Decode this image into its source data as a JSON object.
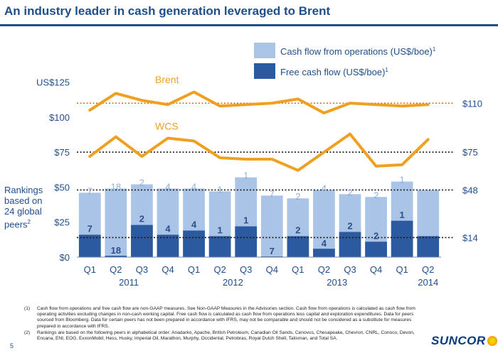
{
  "title": "An industry leader in cash generation leveraged to Brent",
  "page_number": "5",
  "logo_text": "SUNCOR",
  "rankings_note": {
    "line1": "Rankings",
    "line2": "based on",
    "line3": "24 global",
    "line4": "peers",
    "sup": "2"
  },
  "colors": {
    "cfo": "#a9c4e6",
    "fcf": "#2c5aa0",
    "line": "#f0a020",
    "axis_text": "#1f4e8c",
    "ref_brent": "#d2691e",
    "ref_dark": "#1a1a1a"
  },
  "chart_data": {
    "type": "bar",
    "categories": [
      "Q1",
      "Q2",
      "Q3",
      "Q4",
      "Q1",
      "Q2",
      "Q3",
      "Q4",
      "Q1",
      "Q2",
      "Q3",
      "Q4",
      "Q1",
      "Q2"
    ],
    "years": [
      {
        "label": "2011",
        "start": 0,
        "end": 3
      },
      {
        "label": "2012",
        "start": 4,
        "end": 7
      },
      {
        "label": "2013",
        "start": 8,
        "end": 11
      },
      {
        "label": "2014",
        "start": 13,
        "end": 13
      }
    ],
    "ylim": [
      0,
      135
    ],
    "yticks": [
      {
        "value": 0,
        "label": "$0"
      },
      {
        "value": 25,
        "label": "$25"
      },
      {
        "value": 50,
        "label": "$50"
      },
      {
        "value": 75,
        "label": "$75"
      },
      {
        "value": 100,
        "label": "$100"
      },
      {
        "value": 125,
        "label": "US$125"
      }
    ],
    "legend": {
      "placement": "top-right",
      "cfo_label": "Cash flow from operations (US$/boe)",
      "fcf_label": "Free cash flow (US$/boe)",
      "sup": "1"
    },
    "series": [
      {
        "name": "Cash flow from operations (US$/boe)",
        "kind": "bar-back",
        "values": [
          46,
          49,
          52,
          49,
          49,
          47,
          57,
          44,
          42,
          48,
          45,
          43,
          54,
          48
        ],
        "rank_labels": [
          "7",
          "18",
          "2",
          "4",
          "4",
          "1",
          "1",
          "7",
          "2",
          "4",
          "2",
          "2",
          "1",
          ""
        ]
      },
      {
        "name": "Free cash flow (US$/boe)",
        "kind": "bar-front",
        "values": [
          16,
          1,
          23,
          16,
          19,
          15,
          22,
          0.5,
          15,
          6,
          18,
          11,
          26,
          15
        ],
        "rank_labels": [
          "7",
          "18",
          "2",
          "4",
          "4",
          "1",
          "1",
          "7",
          "2",
          "4",
          "2",
          "2",
          "1",
          ""
        ]
      },
      {
        "name": "Brent",
        "kind": "line",
        "values": [
          105,
          117,
          112,
          109,
          118,
          108,
          109,
          110,
          113,
          103,
          110,
          109,
          108,
          109
        ]
      },
      {
        "name": "WCS",
        "kind": "line",
        "values": [
          72,
          86,
          72,
          85,
          83,
          71,
          70,
          70,
          62,
          75,
          88,
          65,
          66,
          84
        ]
      }
    ],
    "reference_lines": [
      {
        "value": 110,
        "label": "$110",
        "style": "brent"
      },
      {
        "value": 75,
        "label": "$75",
        "style": "dark"
      },
      {
        "value": 48,
        "label": "$48",
        "style": "dark"
      },
      {
        "value": 14,
        "label": "$14",
        "style": "dark"
      }
    ]
  },
  "footnotes": [
    {
      "num": "(1)",
      "text": "Cash flow from operations and free cash flow are non-GAAP measures. See Non-GAAP Measures in the Advisories section. Cash flow from operations is calculated as cash flow from operating activities excluding changes in non-cash working capital. Free cash flow is calculated as cash flow from operations less capital and exploration expenditures. Data for peers sourced from Bloomberg. Data for certain peers has not been prepared in accordance with IFRS, may not be comparable and should not be considered as a substitute for measures prepared in accordance with IFRS."
    },
    {
      "num": "(2)",
      "text": "Rankings are based on the following peers in alphabetical order: Anadarko, Apache, British Petroleum, Canadian Oil Sands, Cenovus, Chesapeake, Chevron, CNRL, Conoco, Devon, Encana, ENI, EOG, ExxonMobil, Hess, Husky, Imperial Oil, Marathon, Murphy, Occidental, Petrobras, Royal Dutch Shell, Talisman, and Total SA."
    }
  ]
}
